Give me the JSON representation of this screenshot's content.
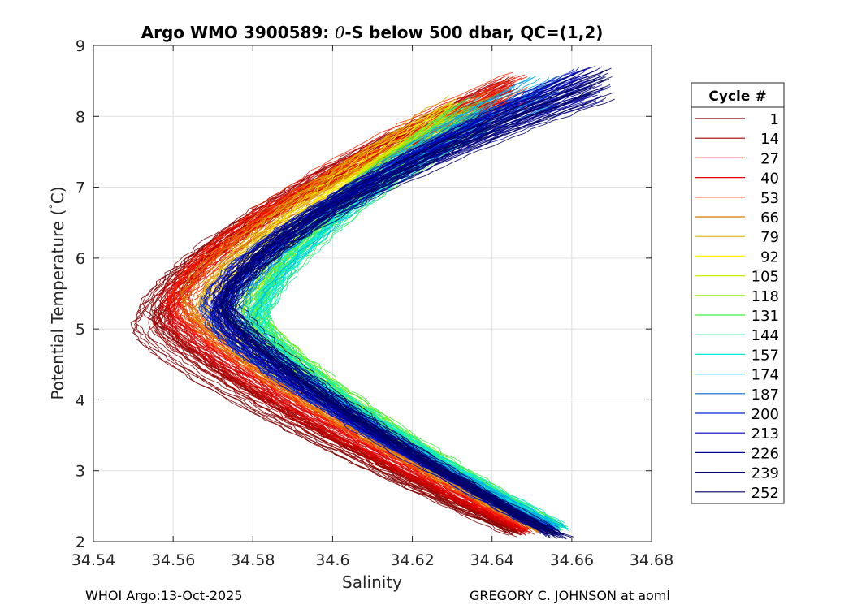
{
  "chart_data": {
    "type": "line",
    "title": "Argo WMO 3900589: θ-S below 500 dbar,  QC=(1,2)",
    "title_parts": {
      "prefix": "Argo WMO 3900589: ",
      "theta": "θ",
      "suffix": "-S below 500 dbar,  QC=(1,2)"
    },
    "xlabel": "Salinity",
    "ylabel": "Potential Temperature (˚C)",
    "ylabel_parts": {
      "main": "Potential Temperature (",
      "degree": "˚",
      "unit": "C)"
    },
    "xlim": [
      34.54,
      34.68
    ],
    "ylim": [
      2,
      9
    ],
    "xticks": [
      34.54,
      34.56,
      34.58,
      34.6,
      34.62,
      34.64,
      34.66,
      34.68
    ],
    "xtick_labels": [
      "34.54",
      "34.56",
      "34.58",
      "34.6",
      "34.62",
      "34.64",
      "34.66",
      "34.68"
    ],
    "yticks": [
      2,
      3,
      4,
      5,
      6,
      7,
      8,
      9
    ],
    "ytick_labels": [
      "2",
      "3",
      "4",
      "5",
      "6",
      "7",
      "8",
      "9"
    ],
    "grid": true,
    "legend_title": "Cycle #",
    "legend_position": "right",
    "series": [
      {
        "name": "1",
        "color": "#800000",
        "smin": 34.553,
        "tmin": 5.1,
        "stop": 34.643,
        "ttop": 8.55,
        "sbot": 34.647,
        "tbot": 2.05
      },
      {
        "name": "14",
        "color": "#a00000",
        "smin": 34.556,
        "tmin": 5.15,
        "stop": 34.644,
        "ttop": 8.58,
        "sbot": 34.648,
        "tbot": 2.06
      },
      {
        "name": "27",
        "color": "#c40000",
        "smin": 34.558,
        "tmin": 5.2,
        "stop": 34.645,
        "ttop": 8.6,
        "sbot": 34.649,
        "tbot": 2.07
      },
      {
        "name": "40",
        "color": "#e60000",
        "smin": 34.56,
        "tmin": 5.25,
        "stop": 34.646,
        "ttop": 8.6,
        "sbot": 34.65,
        "tbot": 2.08
      },
      {
        "name": "53",
        "color": "#ff2a00",
        "smin": 34.562,
        "tmin": 5.3,
        "stop": 34.647,
        "ttop": 8.62,
        "sbot": 34.652,
        "tbot": 2.08
      },
      {
        "name": "66",
        "color": "#d77a00",
        "smin": 34.565,
        "tmin": 5.3,
        "stop": 34.64,
        "ttop": 8.4,
        "sbot": 34.653,
        "tbot": 2.09
      },
      {
        "name": "79",
        "color": "#e0b000",
        "smin": 34.568,
        "tmin": 5.3,
        "stop": 34.632,
        "ttop": 8.3,
        "sbot": 34.654,
        "tbot": 2.1
      },
      {
        "name": "92",
        "color": "#fff000",
        "smin": 34.572,
        "tmin": 5.25,
        "stop": 34.63,
        "ttop": 8.25,
        "sbot": 34.655,
        "tbot": 2.1
      },
      {
        "name": "105",
        "color": "#c8f000",
        "smin": 34.578,
        "tmin": 5.2,
        "stop": 34.632,
        "ttop": 8.2,
        "sbot": 34.656,
        "tbot": 2.12
      },
      {
        "name": "118",
        "color": "#7ff000",
        "smin": 34.58,
        "tmin": 5.15,
        "stop": 34.634,
        "ttop": 8.2,
        "sbot": 34.657,
        "tbot": 2.12
      },
      {
        "name": "131",
        "color": "#3cf040",
        "smin": 34.581,
        "tmin": 5.1,
        "stop": 34.636,
        "ttop": 8.25,
        "sbot": 34.658,
        "tbot": 2.13
      },
      {
        "name": "144",
        "color": "#22f0a0",
        "smin": 34.581,
        "tmin": 5.05,
        "stop": 34.638,
        "ttop": 8.3,
        "sbot": 34.658,
        "tbot": 2.14
      },
      {
        "name": "157",
        "color": "#00ecd8",
        "smin": 34.58,
        "tmin": 5.05,
        "stop": 34.64,
        "ttop": 8.35,
        "sbot": 34.658,
        "tbot": 2.14
      },
      {
        "name": "174",
        "color": "#00a8e8",
        "smin": 34.576,
        "tmin": 5.1,
        "stop": 34.652,
        "ttop": 8.6,
        "sbot": 34.657,
        "tbot": 2.13
      },
      {
        "name": "187",
        "color": "#0064d0",
        "smin": 34.572,
        "tmin": 5.15,
        "stop": 34.658,
        "ttop": 8.65,
        "sbot": 34.656,
        "tbot": 2.1
      },
      {
        "name": "200",
        "color": "#0024d8",
        "smin": 34.57,
        "tmin": 5.2,
        "stop": 34.662,
        "ttop": 8.68,
        "sbot": 34.655,
        "tbot": 2.08
      },
      {
        "name": "213",
        "color": "#0000c8",
        "smin": 34.571,
        "tmin": 5.25,
        "stop": 34.664,
        "ttop": 8.7,
        "sbot": 34.656,
        "tbot": 2.06
      },
      {
        "name": "226",
        "color": "#00009c",
        "smin": 34.572,
        "tmin": 5.25,
        "stop": 34.666,
        "ttop": 8.71,
        "sbot": 34.656,
        "tbot": 2.05
      },
      {
        "name": "239",
        "color": "#000074",
        "smin": 34.573,
        "tmin": 5.3,
        "stop": 34.667,
        "ttop": 8.72,
        "sbot": 34.657,
        "tbot": 2.03
      },
      {
        "name": "252",
        "color": "#000060",
        "smin": 34.574,
        "tmin": 5.3,
        "stop": 34.668,
        "ttop": 8.72,
        "sbot": 34.658,
        "tbot": 2.02
      }
    ]
  },
  "footer": {
    "left": "WHOI Argo:13-Oct-2025",
    "right": "GREGORY C. JOHNSON at aoml"
  }
}
